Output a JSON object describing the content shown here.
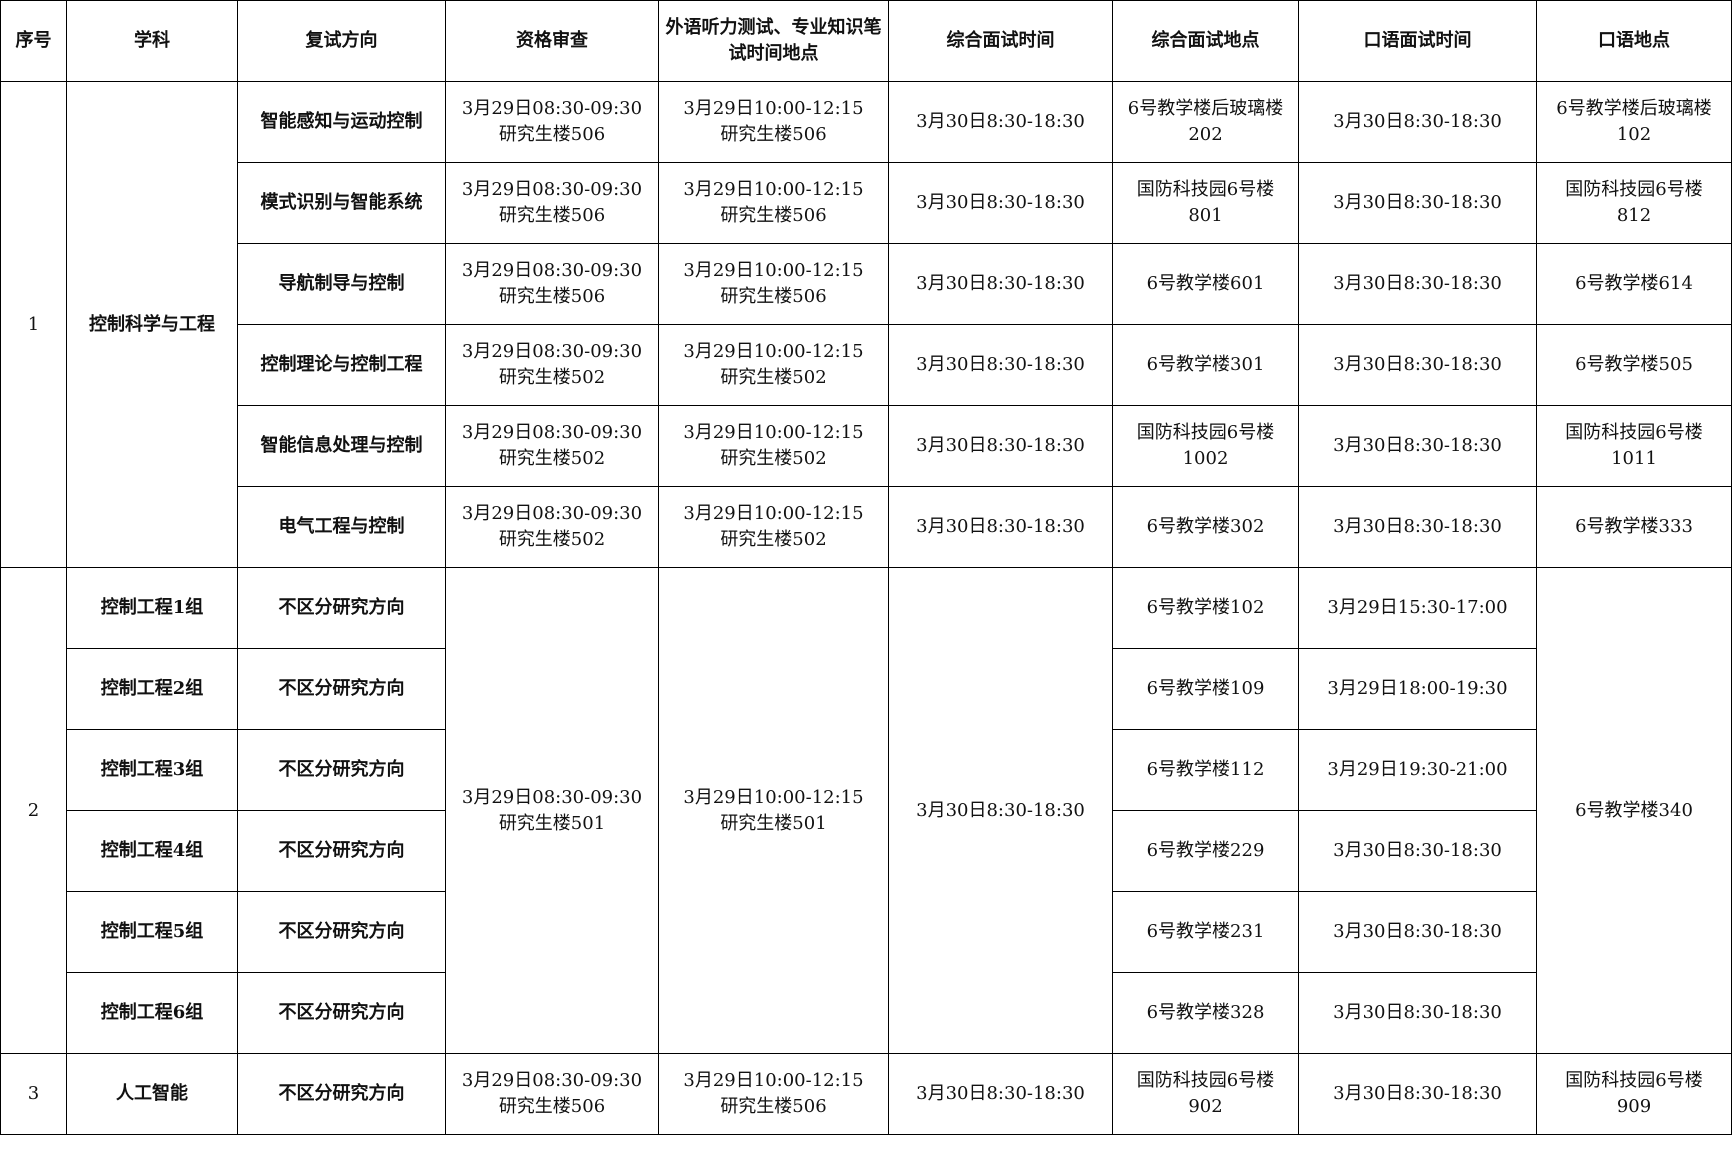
{
  "headers": [
    "序号",
    "学科",
    "复试方向",
    "资格审查",
    "外语听力测试、",
    "专业知识笔试时间地点",
    "综合面试时间",
    "综合面试地点",
    "口语面试时间",
    "口语地点"
  ],
  "g1": {
    "no": "1",
    "subject": "控制科学与工程",
    "rows": [
      {
        "dir": "智能感知与运动控制",
        "qual": [
          "3月29日08:30-09:30",
          "研究生楼506"
        ],
        "exam": [
          "3月29日10:00-12:15",
          "研究生楼506"
        ],
        "itime": "3月30日8:30-18:30",
        "iloc": [
          "6号教学楼后玻璃楼",
          "202"
        ],
        "otime": "3月30日8:30-18:30",
        "oloc": [
          "6号教学楼后玻璃楼",
          "102"
        ]
      },
      {
        "dir": "模式识别与智能系统",
        "qual": [
          "3月29日08:30-09:30",
          "研究生楼506"
        ],
        "exam": [
          "3月29日10:00-12:15",
          "研究生楼506"
        ],
        "itime": "3月30日8:30-18:30",
        "iloc": [
          "国防科技园6号楼",
          "801"
        ],
        "otime": "3月30日8:30-18:30",
        "oloc": [
          "国防科技园6号楼",
          "812"
        ]
      },
      {
        "dir": "导航制导与控制",
        "qual": [
          "3月29日08:30-09:30",
          "研究生楼506"
        ],
        "exam": [
          "3月29日10:00-12:15",
          "研究生楼506"
        ],
        "itime": "3月30日8:30-18:30",
        "iloc": [
          "6号教学楼601",
          ""
        ],
        "otime": "3月30日8:30-18:30",
        "oloc": [
          "6号教学楼614",
          ""
        ]
      },
      {
        "dir": "控制理论与控制工程",
        "qual": [
          "3月29日08:30-09:30",
          "研究生楼502"
        ],
        "exam": [
          "3月29日10:00-12:15",
          "研究生楼502"
        ],
        "itime": "3月30日8:30-18:30",
        "iloc": [
          "6号教学楼301",
          ""
        ],
        "otime": "3月30日8:30-18:30",
        "oloc": [
          "6号教学楼505",
          ""
        ]
      },
      {
        "dir": "智能信息处理与控制",
        "qual": [
          "3月29日08:30-09:30",
          "研究生楼502"
        ],
        "exam": [
          "3月29日10:00-12:15",
          "研究生楼502"
        ],
        "itime": "3月30日8:30-18:30",
        "iloc": [
          "国防科技园6号楼",
          "1002"
        ],
        "otime": "3月30日8:30-18:30",
        "oloc": [
          "国防科技园6号楼",
          "1011"
        ]
      },
      {
        "dir": "电气工程与控制",
        "qual": [
          "3月29日08:30-09:30",
          "研究生楼502"
        ],
        "exam": [
          "3月29日10:00-12:15",
          "研究生楼502"
        ],
        "itime": "3月30日8:30-18:30",
        "iloc": [
          "6号教学楼302",
          ""
        ],
        "otime": "3月30日8:30-18:30",
        "oloc": [
          "6号教学楼333",
          ""
        ]
      }
    ]
  },
  "g2": {
    "no": "2",
    "qual": [
      "3月29日08:30-09:30",
      "研究生楼501"
    ],
    "exam": [
      "3月29日10:00-12:15",
      "研究生楼501"
    ],
    "itime": "3月30日8:30-18:30",
    "oloc": "6号教学楼340",
    "rows": [
      {
        "subject": "控制工程1组",
        "dir": "不区分研究方向",
        "iloc": "6号教学楼102",
        "otime": "3月29日15:30-17:00"
      },
      {
        "subject": "控制工程2组",
        "dir": "不区分研究方向",
        "iloc": "6号教学楼109",
        "otime": "3月29日18:00-19:30"
      },
      {
        "subject": "控制工程3组",
        "dir": "不区分研究方向",
        "iloc": "6号教学楼112",
        "otime": "3月29日19:30-21:00"
      },
      {
        "subject": "控制工程4组",
        "dir": "不区分研究方向",
        "iloc": "6号教学楼229",
        "otime": "3月30日8:30-18:30"
      },
      {
        "subject": "控制工程5组",
        "dir": "不区分研究方向",
        "iloc": "6号教学楼231",
        "otime": "3月30日8:30-18:30"
      },
      {
        "subject": "控制工程6组",
        "dir": "不区分研究方向",
        "iloc": "6号教学楼328",
        "otime": "3月30日8:30-18:30"
      }
    ]
  },
  "g3": {
    "no": "3",
    "subject": "人工智能",
    "dir": "不区分研究方向",
    "qual": [
      "3月29日08:30-09:30",
      "研究生楼506"
    ],
    "exam": [
      "3月29日10:00-12:15",
      "研究生楼506"
    ],
    "itime": "3月30日8:30-18:30",
    "iloc": [
      "国防科技园6号楼",
      "902"
    ],
    "otime": "3月30日8:30-18:30",
    "oloc": [
      "国防科技园6号楼",
      "909"
    ]
  }
}
